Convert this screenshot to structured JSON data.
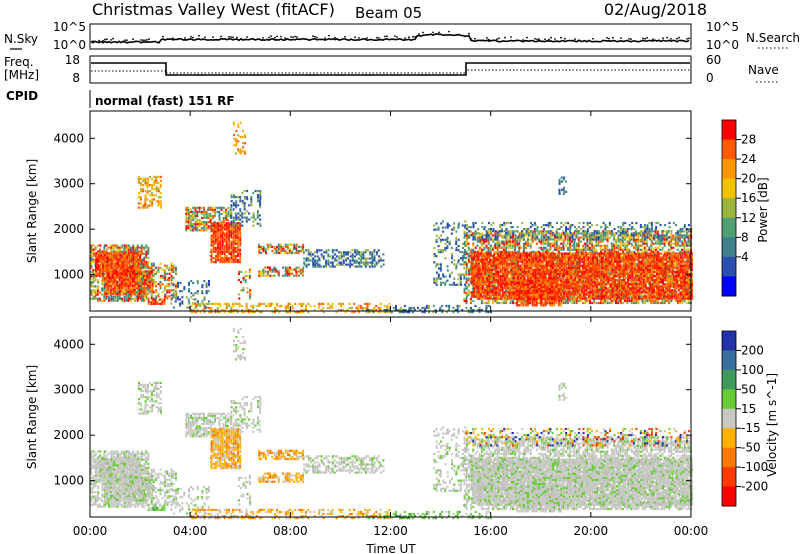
{
  "header": {
    "title": "Christmas Valley West (fitACF)",
    "beam": "Beam 05",
    "date": "02/Aug/2018"
  },
  "nsky_panel": {
    "left_label": "N.Sky",
    "right_label": "N.Search",
    "left_ticks": [
      "10^5",
      "10^0"
    ],
    "right_ticks": [
      "10^5",
      "10^0"
    ]
  },
  "freq_panel": {
    "left_label_1": "Freq.",
    "left_label_2": "[MHz]",
    "right_label": "Nave",
    "left_ticks": [
      "18",
      "8"
    ],
    "right_ticks": [
      "60",
      "0"
    ]
  },
  "cpid": {
    "label": "CPID",
    "mode_text": "normal (fast) 151 RF"
  },
  "chart_data": [
    {
      "type": "heatmap",
      "panel": "power",
      "ylabel": "Slant Range [km]",
      "yticks": [
        1000,
        2000,
        3000,
        4000
      ],
      "ylim": [
        200,
        4600
      ],
      "xlim": [
        "00:00",
        "24:00"
      ],
      "colorbar": {
        "label": "Power [dB]",
        "ticks": [
          "28",
          "24",
          "20",
          "16",
          "12",
          "8",
          "4"
        ],
        "colors": [
          "#ff0000",
          "#ff5a00",
          "#ff9600",
          "#f2c200",
          "#9cb33c",
          "#4f9f72",
          "#3f7f8c",
          "#2a4fb0",
          "#0000ff"
        ]
      }
    },
    {
      "type": "heatmap",
      "panel": "velocity",
      "ylabel": "Slant Range [km]",
      "yticks": [
        1000,
        2000,
        3000,
        4000
      ],
      "ylim": [
        200,
        4600
      ],
      "xlim": [
        "00:00",
        "24:00"
      ],
      "colorbar": {
        "label": "Velocity [m s^-1]",
        "ticks": [
          "200",
          "100",
          "50",
          "15",
          "-15",
          "-50",
          "-100",
          "-200"
        ],
        "colors": [
          "#2233aa",
          "#3a6fa0",
          "#3e9a5a",
          "#66cc33",
          "#c8c8c4",
          "#ffb000",
          "#ff7a00",
          "#ff3a00",
          "#ff0000"
        ]
      }
    }
  ],
  "x_axis": {
    "ticks": [
      "00:00",
      "04:00",
      "08:00",
      "12:00",
      "16:00",
      "20:00",
      "00:00"
    ],
    "label": "Time UT"
  }
}
